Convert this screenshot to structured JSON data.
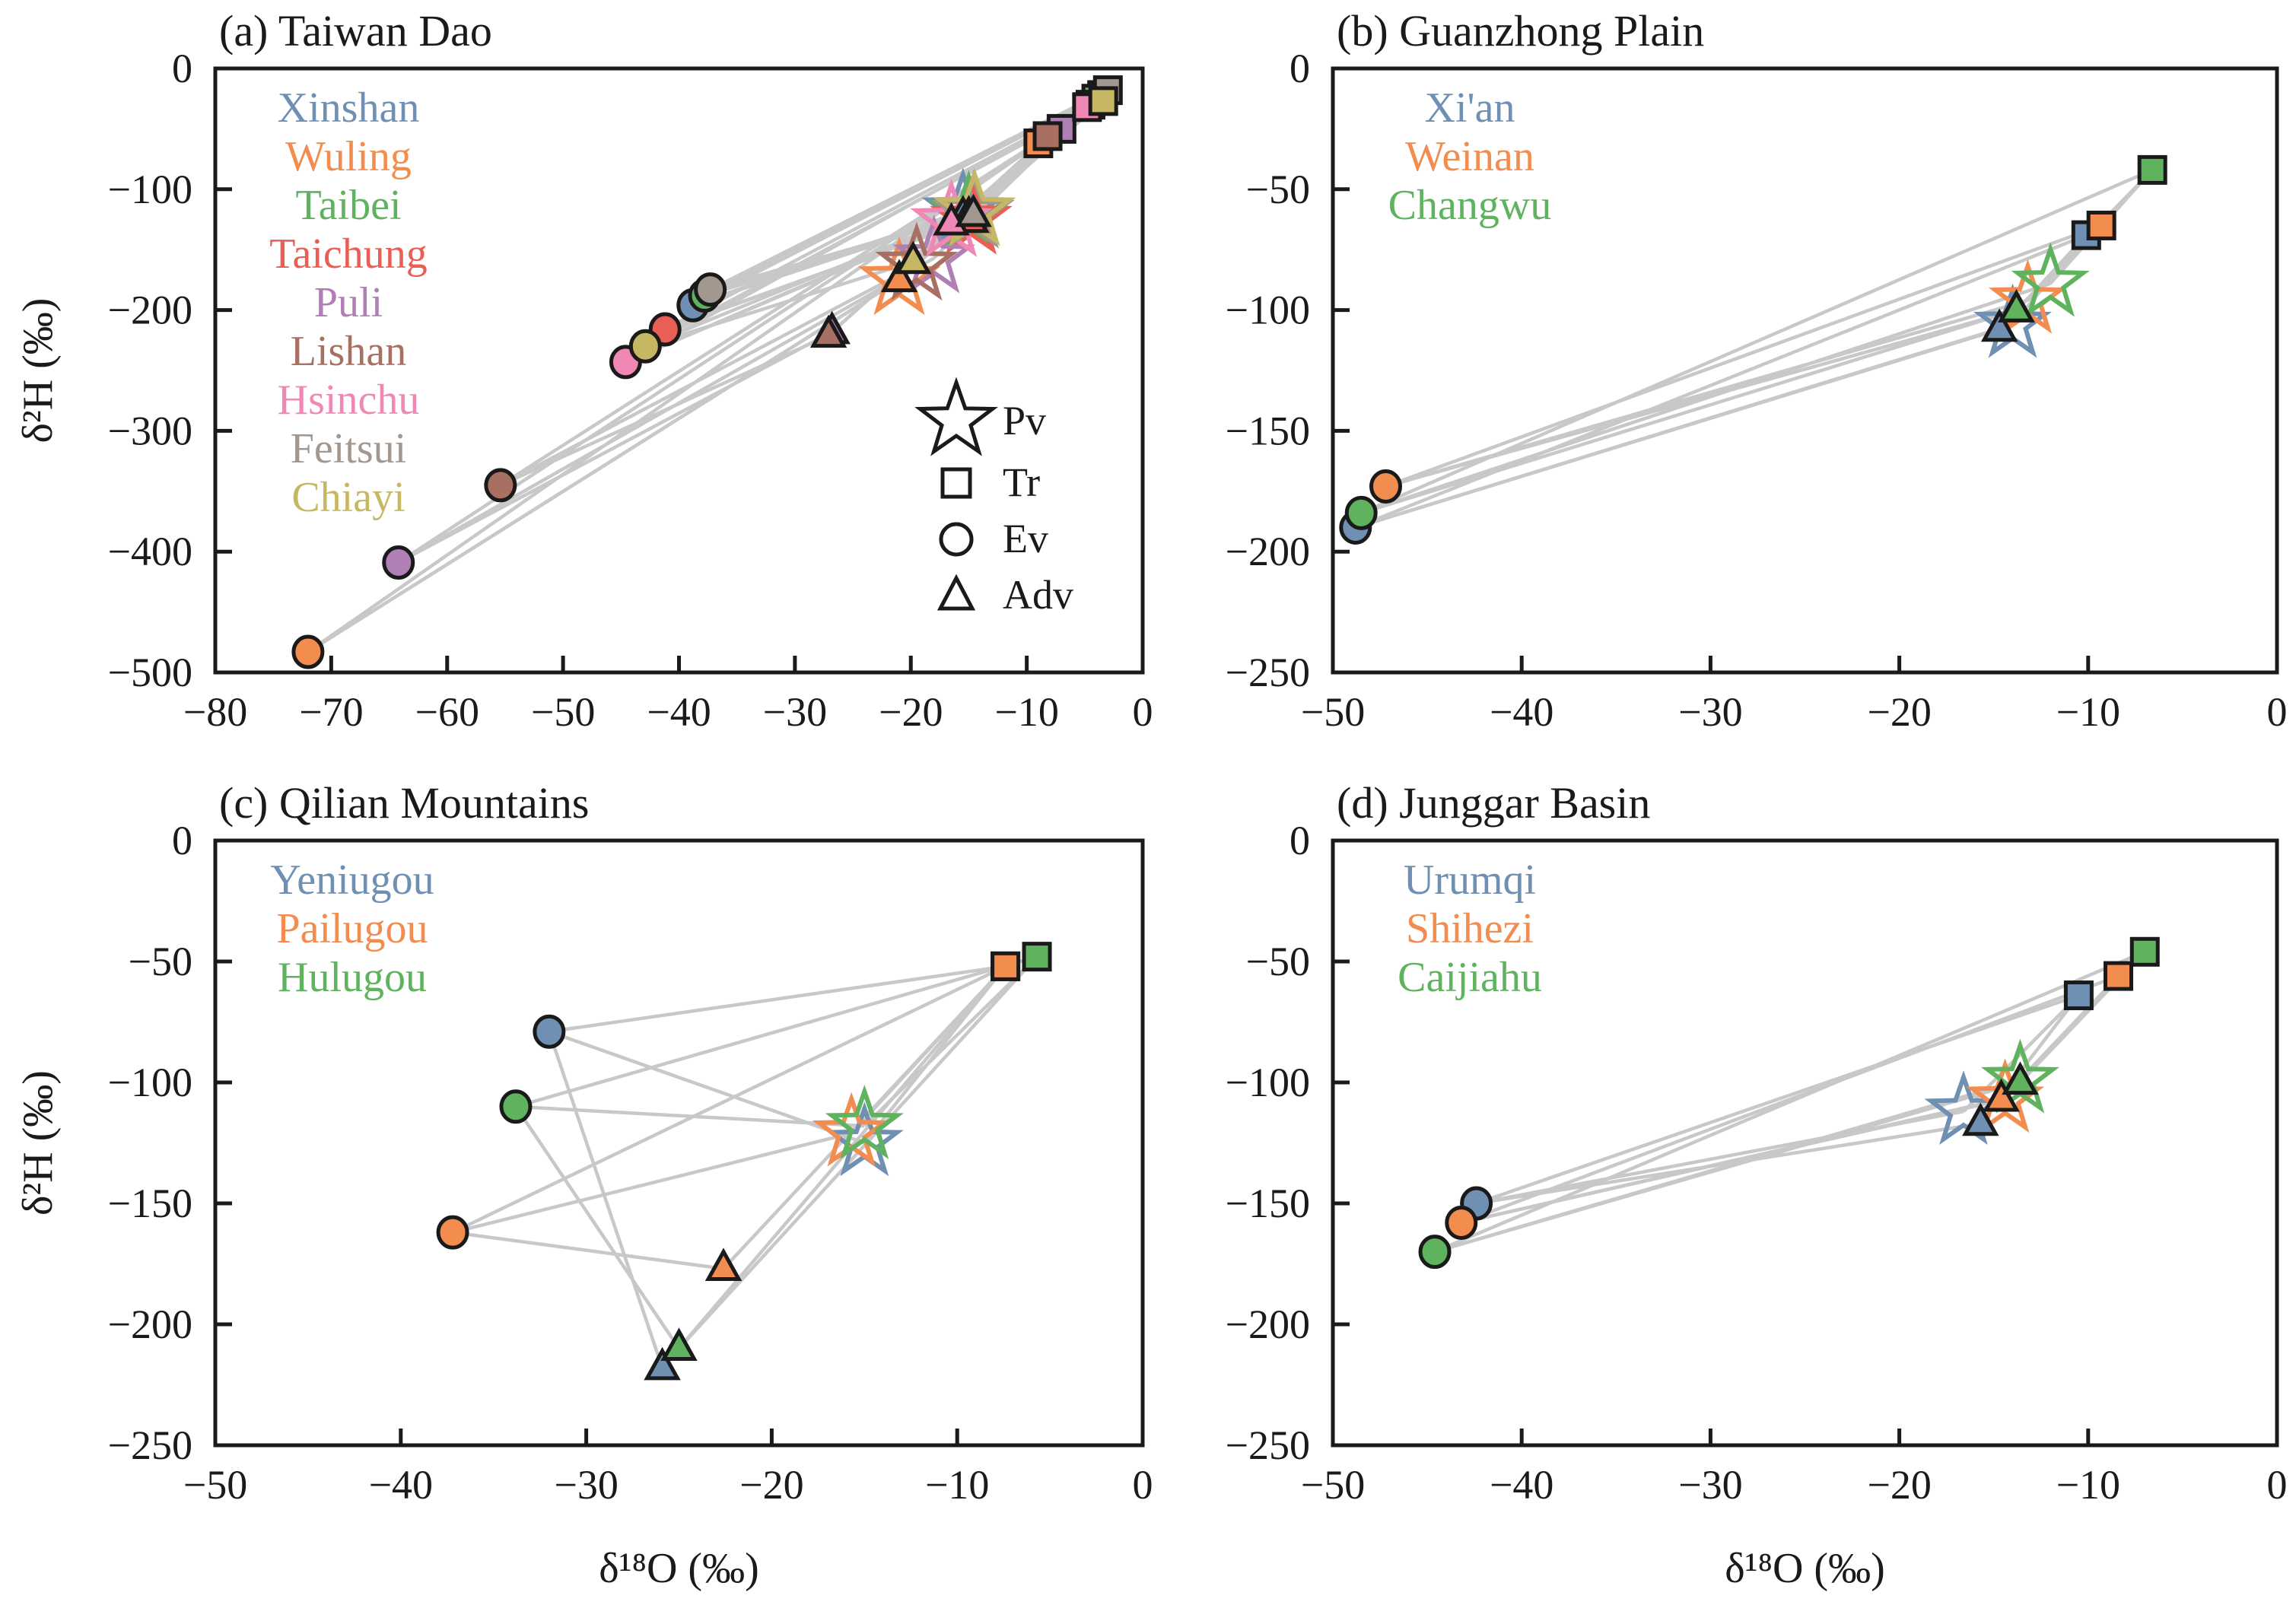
{
  "figure": {
    "ylabel": "δ²H (‰)",
    "xlabel": "δ¹⁸O (‰)",
    "marker_legend": [
      {
        "symbol": "star",
        "label": "Pv"
      },
      {
        "symbol": "square",
        "label": "Tr"
      },
      {
        "symbol": "circle",
        "label": "Ev"
      },
      {
        "symbol": "triangle",
        "label": "Adv"
      }
    ],
    "connector_color": "#c8c8c8"
  },
  "chart_data": [
    {
      "type": "scatter",
      "panel": "a",
      "title": "(a) Taiwan Dao",
      "xlabel": "",
      "ylabel": "δ²H (‰)",
      "xlim": [
        -80,
        0
      ],
      "ylim": [
        -500,
        0
      ],
      "xticks": [
        -80,
        -70,
        -60,
        -50,
        -40,
        -30,
        -20,
        -10,
        0
      ],
      "yticks": [
        0,
        -100,
        -200,
        -300,
        -400,
        -500
      ],
      "xtick_labels": [
        "−80",
        "−70",
        "−60",
        "−50",
        "−40",
        "−30",
        "−20",
        "−10",
        "0"
      ],
      "ytick_labels": [
        "0",
        "−100",
        "−200",
        "−300",
        "−400",
        "−500"
      ],
      "legend_placement": "top-left",
      "show_marker_legend": true,
      "series": [
        {
          "name": "Xinshan",
          "color": "#6f8fb3",
          "Pv": [
            -15.5,
            -118
          ],
          "Tr": [
            -3.5,
            -22
          ],
          "Ev": [
            -38.8,
            -196
          ],
          "Adv": [
            -15.5,
            -122
          ]
        },
        {
          "name": "Wuling",
          "color": "#f28c4f",
          "Pv": [
            -21.0,
            -175
          ],
          "Tr": [
            -9.0,
            -62
          ],
          "Ev": [
            -72.0,
            -483
          ],
          "Adv": [
            -21.0,
            -175
          ]
        },
        {
          "name": "Taibei",
          "color": "#5fb35f",
          "Pv": [
            -15.0,
            -120
          ],
          "Tr": [
            -4.0,
            -25
          ],
          "Ev": [
            -37.8,
            -188
          ],
          "Adv": [
            -15.0,
            -122
          ]
        },
        {
          "name": "Taichung",
          "color": "#ea5f55",
          "Pv": [
            -14.8,
            -125
          ],
          "Tr": [
            -4.5,
            -30
          ],
          "Ev": [
            -41.2,
            -216
          ],
          "Adv": [
            -14.8,
            -126
          ]
        },
        {
          "name": "Puli",
          "color": "#b07fb5",
          "Pv": [
            -18.0,
            -157
          ],
          "Tr": [
            -7.0,
            -50
          ],
          "Ev": [
            -64.2,
            -409
          ],
          "Adv": [
            -26.8,
            -218
          ]
        },
        {
          "name": "Lishan",
          "color": "#a86f63",
          "Pv": [
            -19.5,
            -163
          ],
          "Tr": [
            -8.2,
            -56
          ],
          "Ev": [
            -55.4,
            -345
          ],
          "Adv": [
            -27.1,
            -221
          ]
        },
        {
          "name": "Hsinchu",
          "color": "#ef88b5",
          "Pv": [
            -16.5,
            -127
          ],
          "Tr": [
            -4.8,
            -32
          ],
          "Ev": [
            -44.6,
            -243
          ],
          "Adv": [
            -16.5,
            -128
          ]
        },
        {
          "name": "Feitsui",
          "color": "#a39890",
          "Pv": [
            -14.6,
            -120
          ],
          "Tr": [
            -3.0,
            -18
          ],
          "Ev": [
            -37.3,
            -183
          ],
          "Adv": [
            -14.6,
            -121
          ]
        },
        {
          "name": "Chiayi",
          "color": "#c6b764",
          "Pv": [
            -14.5,
            -118
          ],
          "Tr": [
            -3.4,
            -27
          ],
          "Ev": [
            -42.9,
            -230
          ],
          "Adv": [
            -19.8,
            -160
          ]
        }
      ]
    },
    {
      "type": "scatter",
      "panel": "b",
      "title": "(b) Guanzhong Plain",
      "xlabel": "",
      "ylabel": "",
      "xlim": [
        -50,
        0
      ],
      "ylim": [
        -250,
        0
      ],
      "xticks": [
        -50,
        -40,
        -30,
        -20,
        -10,
        0
      ],
      "yticks": [
        0,
        -50,
        -100,
        -150,
        -200,
        -250
      ],
      "xtick_labels": [
        "−50",
        "−40",
        "−30",
        "−20",
        "−10",
        "0"
      ],
      "ytick_labels": [
        "0",
        "−50",
        "−100",
        "−150",
        "−200",
        "−250"
      ],
      "legend_placement": "top-left",
      "show_marker_legend": false,
      "series": [
        {
          "name": "Xi'an",
          "color": "#6f8fb3",
          "Pv": [
            -14.0,
            -106
          ],
          "Tr": [
            -10.1,
            -69
          ],
          "Ev": [
            -48.8,
            -190
          ],
          "Adv": [
            -14.7,
            -108
          ]
        },
        {
          "name": "Weinan",
          "color": "#f28c4f",
          "Pv": [
            -13.2,
            -96
          ],
          "Tr": [
            -9.3,
            -65
          ],
          "Ev": [
            -47.2,
            -173
          ],
          "Adv": [
            -13.8,
            -100
          ]
        },
        {
          "name": "Changwu",
          "color": "#5fb35f",
          "Pv": [
            -12.0,
            -89
          ],
          "Tr": [
            -6.6,
            -42
          ],
          "Ev": [
            -48.5,
            -184
          ],
          "Adv": [
            -13.8,
            -100
          ]
        }
      ]
    },
    {
      "type": "scatter",
      "panel": "c",
      "title": "(c) Qilian Mountains",
      "xlabel": "δ¹⁸O (‰)",
      "ylabel": "δ²H (‰)",
      "xlim": [
        -50,
        0
      ],
      "ylim": [
        -250,
        0
      ],
      "xticks": [
        -50,
        -40,
        -30,
        -20,
        -10,
        0
      ],
      "yticks": [
        0,
        -50,
        -100,
        -150,
        -200,
        -250
      ],
      "xtick_labels": [
        "−50",
        "−40",
        "−30",
        "−20",
        "−10",
        "0"
      ],
      "ytick_labels": [
        "0",
        "−50",
        "−100",
        "−150",
        "−200",
        "−250"
      ],
      "legend_placement": "top-left",
      "show_marker_legend": false,
      "series": [
        {
          "name": "Yeniugou",
          "color": "#6f8fb3",
          "Pv": [
            -15.0,
            -125
          ],
          "Tr": [
            -7.4,
            -52
          ],
          "Ev": [
            -32.0,
            -79
          ],
          "Adv": [
            -25.9,
            -218
          ]
        },
        {
          "name": "Pailugou",
          "color": "#f28c4f",
          "Pv": [
            -15.7,
            -121
          ],
          "Tr": [
            -7.4,
            -52
          ],
          "Ev": [
            -37.2,
            -162
          ],
          "Adv": [
            -22.6,
            -177
          ]
        },
        {
          "name": "Hulugou",
          "color": "#5fb35f",
          "Pv": [
            -15.0,
            -118
          ],
          "Tr": [
            -5.7,
            -48
          ],
          "Ev": [
            -33.8,
            -110
          ],
          "Adv": [
            -25.0,
            -210
          ]
        }
      ]
    },
    {
      "type": "scatter",
      "panel": "d",
      "title": "(d) Junggar Basin",
      "xlabel": "δ¹⁸O (‰)",
      "ylabel": "",
      "xlim": [
        -50,
        0
      ],
      "ylim": [
        -250,
        0
      ],
      "xticks": [
        -50,
        -40,
        -30,
        -20,
        -10,
        0
      ],
      "yticks": [
        0,
        -50,
        -100,
        -150,
        -200,
        -250
      ],
      "xtick_labels": [
        "−50",
        "−40",
        "−30",
        "−20",
        "−10",
        "0"
      ],
      "ytick_labels": [
        "0",
        "−50",
        "−100",
        "−150",
        "−200",
        "−250"
      ],
      "legend_placement": "top-left",
      "show_marker_legend": false,
      "series": [
        {
          "name": "Urumqi",
          "color": "#6f8fb3",
          "Pv": [
            -16.6,
            -112
          ],
          "Tr": [
            -10.5,
            -64
          ],
          "Ev": [
            -42.4,
            -150
          ],
          "Adv": [
            -15.7,
            -117
          ]
        },
        {
          "name": "Shihezi",
          "color": "#f28c4f",
          "Pv": [
            -14.4,
            -107
          ],
          "Tr": [
            -8.4,
            -56
          ],
          "Ev": [
            -43.2,
            -158
          ],
          "Adv": [
            -14.6,
            -107
          ]
        },
        {
          "name": "Caijiahu",
          "color": "#5fb35f",
          "Pv": [
            -13.6,
            -99
          ],
          "Tr": [
            -7.0,
            -46
          ],
          "Ev": [
            -44.6,
            -170
          ],
          "Adv": [
            -13.6,
            -100
          ]
        }
      ]
    }
  ]
}
